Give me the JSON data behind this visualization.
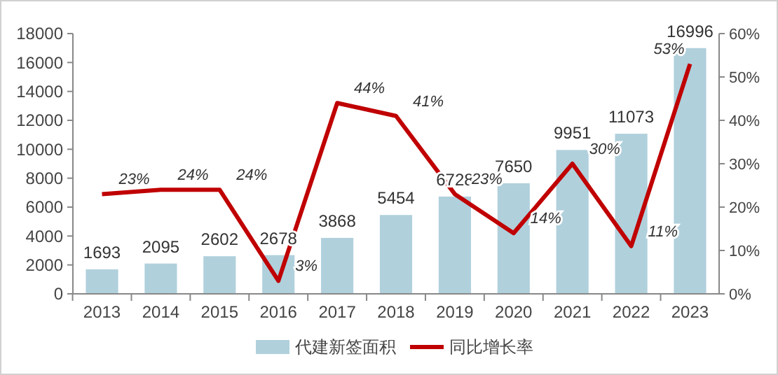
{
  "chart_data": {
    "type": "bar",
    "categories": [
      "2013",
      "2014",
      "2015",
      "2016",
      "2017",
      "2018",
      "2019",
      "2020",
      "2021",
      "2022",
      "2023"
    ],
    "series": [
      {
        "name": "代建新签面积",
        "type": "bar",
        "color": "#b0d0dc",
        "values": [
          1693,
          2095,
          2602,
          2678,
          3868,
          5454,
          6728,
          7650,
          9951,
          11073,
          16996
        ],
        "data_labels": true
      },
      {
        "name": "同比增长率",
        "type": "line",
        "axis": "y2",
        "color": "#c00000",
        "values": [
          23,
          24,
          24,
          3,
          44,
          41,
          23,
          14,
          30,
          11,
          53
        ],
        "value_labels": [
          "23%",
          "24%",
          "24%",
          "3%",
          "44%",
          "41%",
          "23%",
          "14%",
          "30%",
          "11%",
          "53%"
        ]
      }
    ],
    "ylim": [
      0,
      18000
    ],
    "yticks": [
      0,
      2000,
      4000,
      6000,
      8000,
      10000,
      12000,
      14000,
      16000,
      18000
    ],
    "y2lim": [
      0,
      60
    ],
    "y2ticks": [
      {
        "value": 0,
        "label": "0%"
      },
      {
        "value": 10,
        "label": "10%"
      },
      {
        "value": 20,
        "label": "20%"
      },
      {
        "value": 30,
        "label": "30%"
      },
      {
        "value": 40,
        "label": "40%"
      },
      {
        "value": 50,
        "label": "50%"
      },
      {
        "value": 60,
        "label": "60%"
      }
    ],
    "legend": "bottom",
    "marker": "none",
    "line_style": "solid"
  }
}
